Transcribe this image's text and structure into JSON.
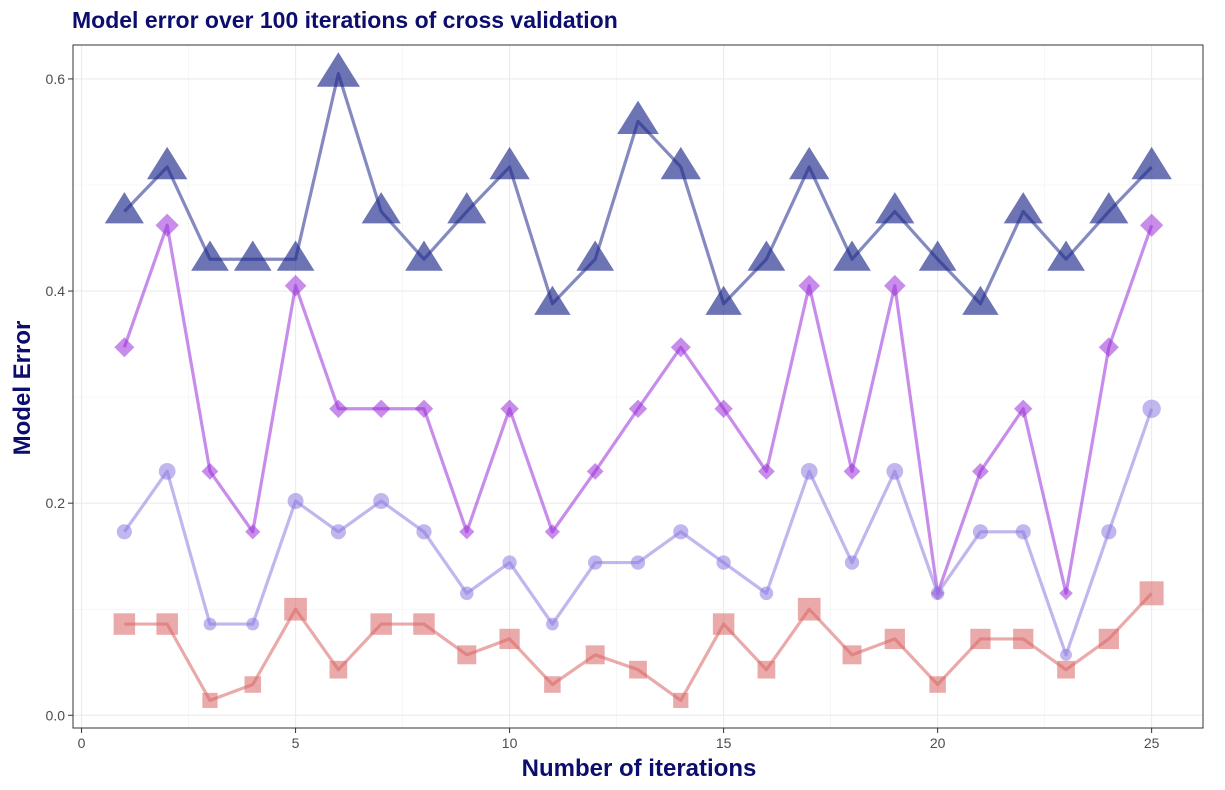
{
  "chart_data": {
    "type": "line",
    "title": "Model error over 100 iterations of cross validation",
    "xlabel": "Number of iterations",
    "ylabel": "Model Error",
    "xlim": [
      -0.2,
      26.2
    ],
    "ylim": [
      -0.012,
      0.632
    ],
    "x_ticks": [
      0,
      5,
      10,
      15,
      20,
      25
    ],
    "x_tick_labels": [
      "0",
      "5",
      "10",
      "15",
      "20",
      "25"
    ],
    "y_ticks": [
      0.0,
      0.2,
      0.4,
      0.6
    ],
    "y_tick_labels": [
      "0.0",
      "0.2",
      "0.4",
      "0.6"
    ],
    "grid": true,
    "legend": "none",
    "title_color": "#0d0d6e",
    "axis_title_color": "#0d0d6e",
    "x": [
      1,
      2,
      3,
      4,
      5,
      6,
      7,
      8,
      9,
      10,
      11,
      12,
      13,
      14,
      15,
      16,
      17,
      18,
      19,
      20,
      21,
      22,
      23,
      24,
      25
    ],
    "series": [
      {
        "marker": "triangle",
        "color": "#1f2a8c",
        "values": [
          0.475,
          0.517,
          0.43,
          0.43,
          0.43,
          0.605,
          0.475,
          0.43,
          0.475,
          0.517,
          0.388,
          0.43,
          0.56,
          0.517,
          0.388,
          0.43,
          0.517,
          0.43,
          0.475,
          0.43,
          0.388,
          0.475,
          0.43,
          0.475,
          0.517
        ]
      },
      {
        "marker": "diamond",
        "color": "#9b30d9",
        "values": [
          0.347,
          0.462,
          0.23,
          0.173,
          0.405,
          0.289,
          0.289,
          0.289,
          0.173,
          0.289,
          0.173,
          0.23,
          0.289,
          0.347,
          0.289,
          0.23,
          0.405,
          0.23,
          0.405,
          0.115,
          0.23,
          0.289,
          0.115,
          0.347,
          0.462
        ]
      },
      {
        "marker": "circle",
        "color": "#8f7ae0",
        "values": [
          0.173,
          0.23,
          0.086,
          0.086,
          0.202,
          0.173,
          0.202,
          0.173,
          0.115,
          0.144,
          0.086,
          0.144,
          0.144,
          0.173,
          0.144,
          0.115,
          0.23,
          0.144,
          0.23,
          0.115,
          0.173,
          0.173,
          0.057,
          0.173,
          0.289
        ]
      },
      {
        "marker": "square",
        "color": "#d96464",
        "values": [
          0.086,
          0.086,
          0.014,
          0.029,
          0.1,
          0.043,
          0.086,
          0.086,
          0.057,
          0.072,
          0.029,
          0.057,
          0.043,
          0.014,
          0.086,
          0.043,
          0.1,
          0.057,
          0.072,
          0.029,
          0.072,
          0.072,
          0.043,
          0.072,
          0.115
        ]
      }
    ]
  }
}
